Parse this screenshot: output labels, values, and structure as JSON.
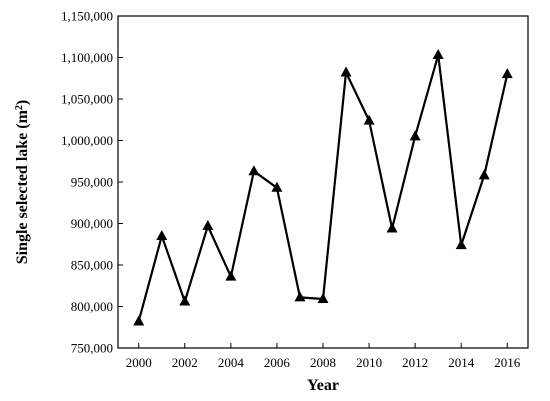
{
  "chart_data": {
    "type": "line",
    "xlabel": "Year",
    "ylabel": "Single selected lake (m",
    "ylabel_superscript": "2",
    "ylabel_suffix": ")",
    "xlim": [
      1999.1,
      2016.9
    ],
    "ylim": [
      750000,
      1150000
    ],
    "x_ticks": [
      2000,
      2002,
      2004,
      2006,
      2008,
      2010,
      2012,
      2014,
      2016
    ],
    "x_tick_labels": [
      "2000",
      "2002",
      "2004",
      "2006",
      "2008",
      "2010",
      "2012",
      "2014",
      "2016"
    ],
    "y_ticks": [
      750000,
      800000,
      850000,
      900000,
      950000,
      1000000,
      1050000,
      1100000,
      1150000
    ],
    "y_tick_labels": [
      "750,000",
      "800,000",
      "850,000",
      "900,000",
      "950,000",
      "1,000,000",
      "1,050,000",
      "1,100,000",
      "1,150,000"
    ],
    "grid": false,
    "marker": "triangle",
    "line_color": "#000000",
    "x": [
      2000,
      2001,
      2002,
      2003,
      2004,
      2005,
      2006,
      2007,
      2008,
      2009,
      2010,
      2011,
      2012,
      2013,
      2014,
      2015,
      2016
    ],
    "values": [
      782000,
      885000,
      806000,
      897000,
      836000,
      963000,
      943000,
      811000,
      809000,
      1082000,
      1024000,
      894000,
      1005000,
      1103000,
      874000,
      958000,
      1080000
    ]
  }
}
